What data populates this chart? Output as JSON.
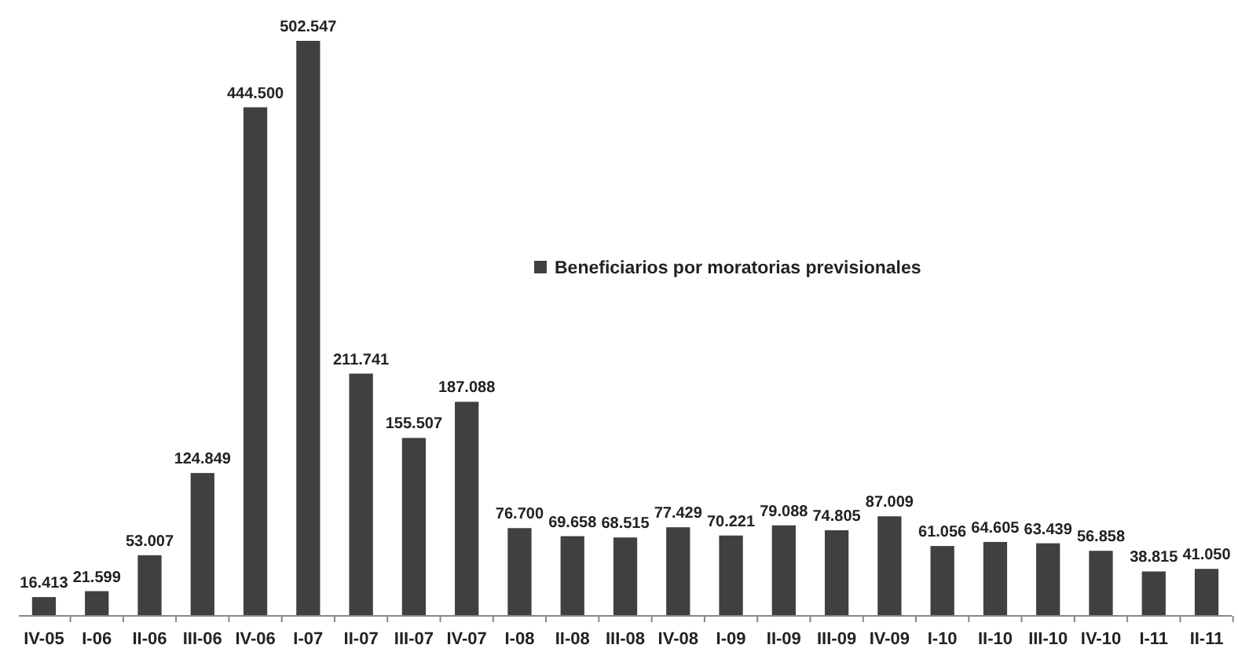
{
  "chart_data": {
    "type": "bar",
    "categories": [
      "IV-05",
      "I-06",
      "II-06",
      "III-06",
      "IV-06",
      "I-07",
      "II-07",
      "III-07",
      "IV-07",
      "I-08",
      "II-08",
      "III-08",
      "IV-08",
      "I-09",
      "II-09",
      "III-09",
      "IV-09",
      "I-10",
      "II-10",
      "III-10",
      "IV-10",
      "I-11",
      "II-11"
    ],
    "series": [
      {
        "name": "Beneficiarios por moratorias previsionales",
        "color": "#404040",
        "values": [
          16413,
          21599,
          53007,
          124849,
          444500,
          502547,
          211741,
          155507,
          187088,
          76700,
          69658,
          68515,
          77429,
          70221,
          79088,
          74805,
          87009,
          61056,
          64605,
          63439,
          56858,
          38815,
          41050
        ],
        "value_labels": [
          "16.413",
          "21.599",
          "53.007",
          "124.849",
          "444.500",
          "502.547",
          "211.741",
          "155.507",
          "187.088",
          "76.700",
          "69.658",
          "68.515",
          "77.429",
          "70.221",
          "79.088",
          "74.805",
          "87.009",
          "61.056",
          "64.605",
          "63.439",
          "56.858",
          "38.815",
          "41.050"
        ]
      }
    ],
    "legend": "center"
  }
}
